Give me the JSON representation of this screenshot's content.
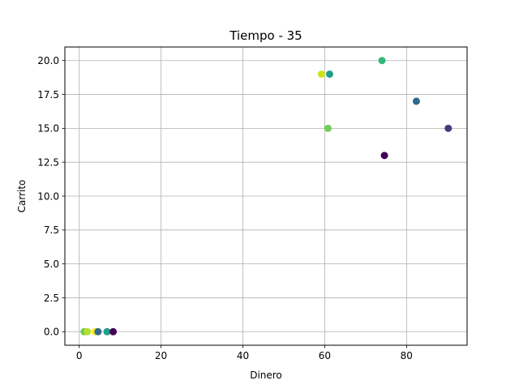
{
  "chart_data": {
    "type": "scatter",
    "title": "Tiempo -  35",
    "xlabel": "Dinero",
    "ylabel": "Carrito",
    "xlim": [
      -3.5,
      94.8
    ],
    "ylim": [
      -1,
      21
    ],
    "grid": true,
    "xticks": [
      0,
      20,
      40,
      60,
      80
    ],
    "xtick_labels": [
      "0",
      "20",
      "40",
      "60",
      "80"
    ],
    "yticks": [
      0,
      2.5,
      5,
      7.5,
      10,
      12.5,
      15,
      17.5,
      20
    ],
    "ytick_labels": [
      "0.0",
      "2.5",
      "5.0",
      "7.5",
      "10.0",
      "12.5",
      "15.0",
      "17.5",
      "20.0"
    ],
    "points": [
      {
        "x": 74.0,
        "y": 20,
        "color": "#35b779"
      },
      {
        "x": 59.2,
        "y": 19,
        "color": "#d0e11c"
      },
      {
        "x": 61.2,
        "y": 19,
        "color": "#1f9e89"
      },
      {
        "x": 82.4,
        "y": 17,
        "color": "#31688e"
      },
      {
        "x": 60.8,
        "y": 15,
        "color": "#6ece58"
      },
      {
        "x": 90.2,
        "y": 15,
        "color": "#443a83"
      },
      {
        "x": 74.6,
        "y": 13,
        "color": "#440154"
      },
      {
        "x": 1.2,
        "y": 0,
        "color": "#6ece58"
      },
      {
        "x": 2.0,
        "y": 0,
        "color": "#b5de2b"
      },
      {
        "x": 3.9,
        "y": 0,
        "color": "#fde725"
      },
      {
        "x": 4.6,
        "y": 0,
        "color": "#31688e"
      },
      {
        "x": 6.8,
        "y": 0,
        "color": "#1f9e89"
      },
      {
        "x": 8.3,
        "y": 0,
        "color": "#440154"
      }
    ]
  }
}
